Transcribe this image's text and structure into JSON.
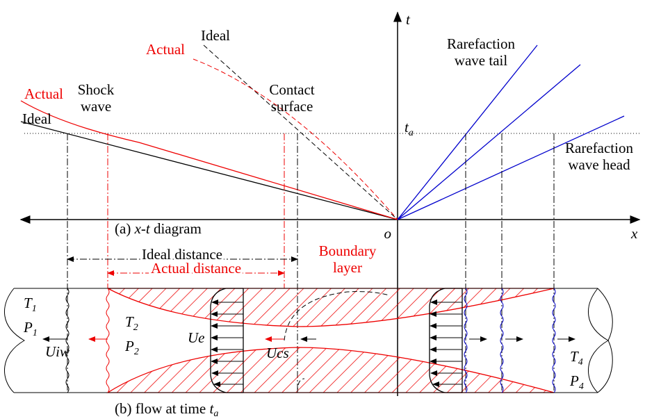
{
  "axes": {
    "t": "t",
    "ta_main": "t",
    "ta_sub": "a",
    "o": "o",
    "x": "x"
  },
  "xt_labels": {
    "ideal_contact": "Ideal",
    "actual_contact": "Actual",
    "actual_shock": "Actual",
    "shock_wave": [
      "Shock",
      "wave"
    ],
    "ideal_shock": "Ideal",
    "contact_surface": [
      "Contact",
      "surface"
    ],
    "rarefaction_tail": [
      "Rarefaction",
      "wave tail"
    ],
    "rarefaction_head": [
      "Rarefaction",
      "wave head"
    ],
    "caption_a": {
      "prefix": "(a) ",
      "italic": "x-t",
      "suffix": " diagram"
    }
  },
  "flow_labels": {
    "ideal_distance": "Ideal distance",
    "actual_distance": "Actual distance",
    "boundary_layer": [
      "Boundary",
      "layer"
    ],
    "T1": {
      "main": "T",
      "sub": "1"
    },
    "P1": {
      "main": "P",
      "sub": "1"
    },
    "T2": {
      "main": "T",
      "sub": "2"
    },
    "P2": {
      "main": "P",
      "sub": "2"
    },
    "T4": {
      "main": "T",
      "sub": "4"
    },
    "P4": {
      "main": "P",
      "sub": "4"
    },
    "Ue": "Ue",
    "Uiw": "Uiw",
    "Ucs": "Ucs",
    "caption_b": {
      "prefix": "(b) flow at time ",
      "italic_main": "t",
      "italic_sub": "a"
    }
  }
}
